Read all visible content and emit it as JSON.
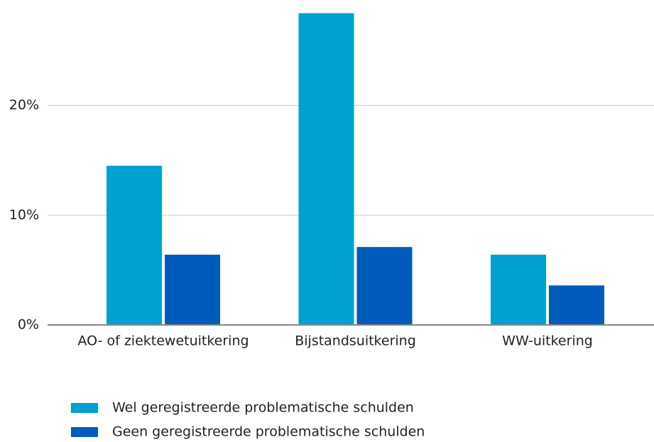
{
  "chart_data": {
    "type": "bar",
    "categories": [
      "AO- of ziektewetuitkering",
      "Bijstandsuitkering",
      "WW-uitkering"
    ],
    "series": [
      {
        "name": "Wel geregistreerde problematische schulden",
        "color": "#00a0cf",
        "values": [
          14.5,
          28.4,
          6.4
        ]
      },
      {
        "name": "Geen geregistreerde problematische schulden",
        "color": "#005cbb",
        "values": [
          6.4,
          7.1,
          3.6
        ]
      }
    ],
    "ylim": [
      0,
      29.6
    ],
    "yticks": [
      {
        "value": 0,
        "label": "0%"
      },
      {
        "value": 10,
        "label": "10%"
      },
      {
        "value": 20,
        "label": "20%"
      }
    ],
    "grid": true,
    "legend": "bottom"
  }
}
